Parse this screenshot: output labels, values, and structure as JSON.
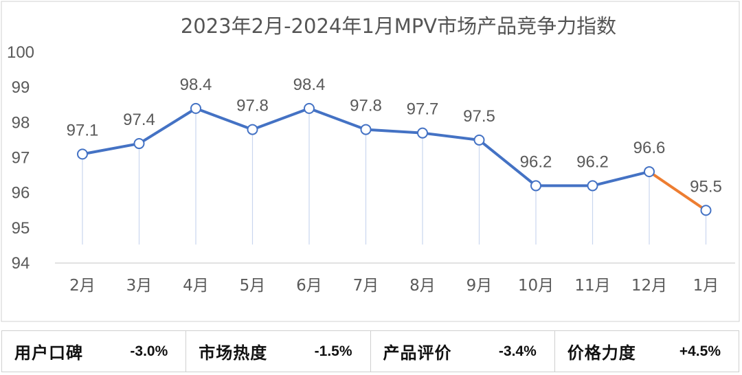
{
  "chart_data": {
    "type": "line",
    "title": "2023年2月-2024年1月MPV市场产品竞争力指数",
    "categories": [
      "2月",
      "3月",
      "4月",
      "5月",
      "6月",
      "7月",
      "8月",
      "9月",
      "10月",
      "11月",
      "12月",
      "1月"
    ],
    "series": [
      {
        "values": [
          97.1,
          97.4,
          98.4,
          97.8,
          98.4,
          97.8,
          97.7,
          97.5,
          96.2,
          96.2,
          96.6,
          95.5
        ]
      }
    ],
    "data_labels": [
      "97.1",
      "97.4",
      "98.4",
      "97.8",
      "98.4",
      "97.8",
      "97.7",
      "97.5",
      "96.2",
      "96.2",
      "96.6",
      "95.5"
    ],
    "ylim": [
      94,
      100
    ],
    "yticks": [
      "94",
      "95",
      "96",
      "97",
      "98",
      "99",
      "100"
    ],
    "xlabel": "",
    "ylabel": "",
    "grid": false,
    "colors": {
      "line": "#4472C4",
      "last_segment": "#ED7D31",
      "drop_lines": "#C9D6EE"
    }
  },
  "metrics": [
    {
      "label": "用户口碑",
      "value": "-3.0%"
    },
    {
      "label": "市场热度",
      "value": "-1.5%"
    },
    {
      "label": "产品评价",
      "value": "-3.4%"
    },
    {
      "label": "价格力度",
      "value": "+4.5%"
    }
  ]
}
